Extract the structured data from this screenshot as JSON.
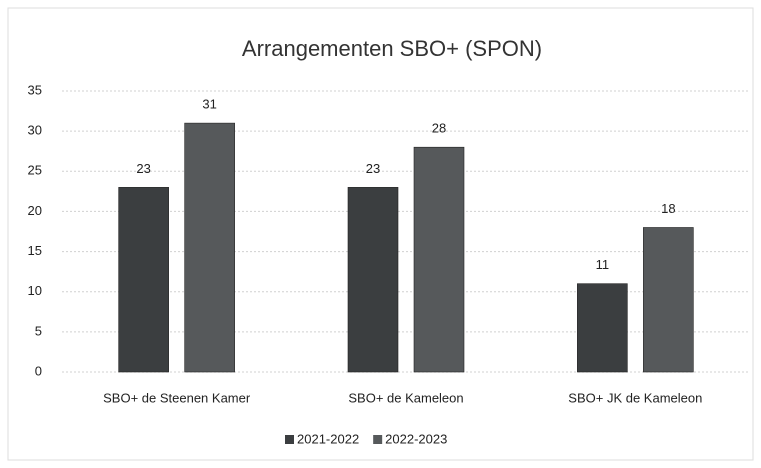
{
  "chart_data": {
    "type": "bar",
    "title": "Arrangementen SBO+ (SPON)",
    "categories": [
      "SBO+ de Steenen Kamer",
      "SBO+ de Kameleon",
      "SBO+ JK de Kameleon"
    ],
    "series": [
      {
        "name": "2021-2022",
        "color": "#3b3e40",
        "values": [
          23,
          23,
          11
        ]
      },
      {
        "name": "2022-2023",
        "color": "#56595b",
        "values": [
          31,
          28,
          18
        ]
      }
    ],
    "ylim": [
      0,
      35
    ],
    "yticks": [
      0,
      5,
      10,
      15,
      20,
      25,
      30,
      35
    ],
    "grid": true,
    "legend": "bottom"
  }
}
